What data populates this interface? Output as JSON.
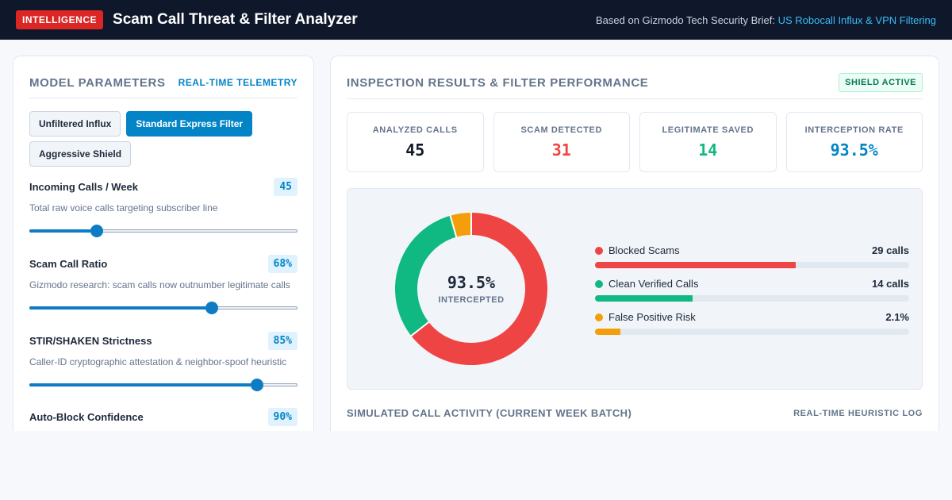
{
  "header": {
    "tag": "INTELLIGENCE",
    "title": "Scam Call Threat & Filter Analyzer",
    "source_prefix": "Based on Gizmodo Tech Security Brief:",
    "source_link": "US Robocall Influx & VPN Filtering"
  },
  "params_panel": {
    "title": "MODEL PARAMETERS",
    "badge": "REAL-TIME TELEMETRY",
    "presets": [
      {
        "label": "Unfiltered Influx",
        "active": false
      },
      {
        "label": "Standard Express Filter",
        "active": true
      },
      {
        "label": "Aggressive Shield",
        "active": false
      }
    ],
    "params": [
      {
        "label": "Incoming Calls / Week",
        "value": "45",
        "desc": "Total raw voice calls targeting subscriber line",
        "level": 0.25
      },
      {
        "label": "Scam Call Ratio",
        "value": "68%",
        "desc": "Gizmodo research: scam calls now outnumber legitimate calls",
        "level": 0.68
      },
      {
        "label": "STIR/SHAKEN Strictness",
        "value": "85%",
        "desc": "Caller-ID cryptographic attestation & neighbor-spoof heuristic",
        "level": 0.85
      },
      {
        "label": "Auto-Block Confidence",
        "value": "90%",
        "desc": "",
        "level": 0.9
      }
    ]
  },
  "results_panel": {
    "title": "INSPECTION RESULTS & FILTER PERFORMANCE",
    "badge": "SHIELD ACTIVE",
    "stats": [
      {
        "label": "ANALYZED CALLS",
        "value": "45",
        "color": "#111827"
      },
      {
        "label": "SCAM DETECTED",
        "value": "31",
        "color": "#ef4444"
      },
      {
        "label": "LEGITIMATE SAVED",
        "value": "14",
        "color": "#10b981"
      },
      {
        "label": "INTERCEPTION RATE",
        "value": "93.5%",
        "color": "#0284c7"
      }
    ],
    "donut": {
      "center_value": "93.5%",
      "center_label": "INTERCEPTED",
      "segments": [
        {
          "name": "blocked",
          "value": 29,
          "color": "#ef4444"
        },
        {
          "name": "clean",
          "value": 14,
          "color": "#10b981"
        },
        {
          "name": "false-positive",
          "value": 2,
          "color": "#f59e0b"
        }
      ]
    },
    "legend": [
      {
        "label": "Blocked Scams",
        "value": "29 calls",
        "level": 0.64,
        "color": "#ef4444"
      },
      {
        "label": "Clean Verified Calls",
        "value": "14 calls",
        "level": 0.31,
        "color": "#10b981"
      },
      {
        "label": "False Positive Risk",
        "value": "2.1%",
        "level": 0.08,
        "color": "#f59e0b"
      }
    ],
    "activity_title": "SIMULATED CALL ACTIVITY (CURRENT WEEK BATCH)",
    "activity_log": "REAL-TIME HEURISTIC LOG"
  }
}
